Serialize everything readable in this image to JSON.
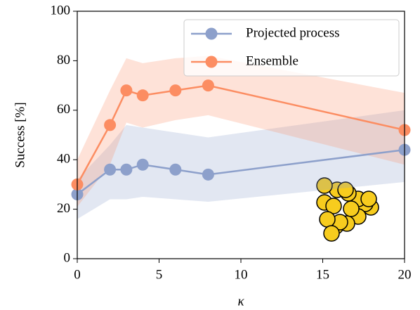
{
  "chart_data": {
    "type": "line",
    "x_label": "κ",
    "y_label": "Success [%]",
    "x": [
      0,
      2,
      3,
      4,
      6,
      8,
      20
    ],
    "series": [
      {
        "name": "Projected process",
        "color": "#8da0cb",
        "values": [
          26,
          36,
          36,
          38,
          36,
          34,
          44
        ],
        "lower": [
          16,
          24,
          24,
          25,
          24,
          23,
          31
        ],
        "upper": [
          32,
          46,
          54,
          53,
          51,
          49,
          60
        ]
      },
      {
        "name": "Ensemble",
        "color": "#fc8d62",
        "values": [
          30,
          54,
          68,
          66,
          68,
          70,
          52
        ],
        "lower": [
          21,
          38,
          55,
          53,
          56,
          58,
          38
        ],
        "upper": [
          40,
          68,
          81,
          79,
          81,
          82,
          67
        ]
      }
    ],
    "xlim": [
      0,
      20
    ],
    "xticks": [
      0,
      5,
      10,
      15,
      20
    ],
    "ylim": [
      0,
      100
    ],
    "yticks": [
      0,
      20,
      40,
      60,
      80,
      100
    ],
    "legend": "upper right"
  }
}
